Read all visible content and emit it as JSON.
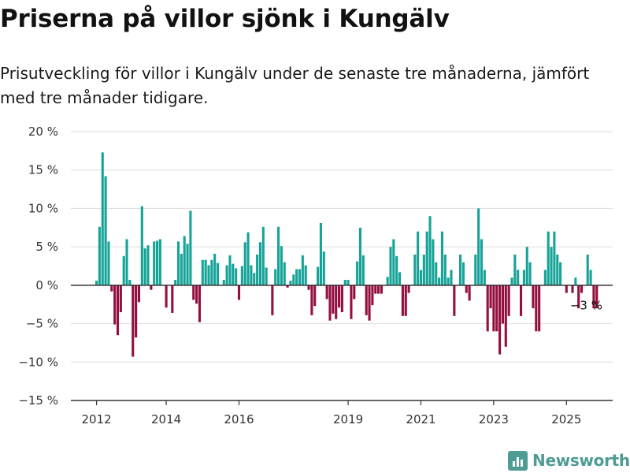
{
  "header": {
    "title": "Priserna på villor sjönk i Kungälv",
    "subtitle": "Prisutveckling för villor i Kungälv under de senaste tre månaderna, jämfört med tre månader tidigare."
  },
  "brand": {
    "name": "Newsworthy",
    "logo_icon": "bar-chart-icon"
  },
  "colors": {
    "positive": "#16a398",
    "negative": "#940f40",
    "grid": "#dddddd",
    "axis": "#333333"
  },
  "chart_data": {
    "type": "bar",
    "title": "Priserna på villor sjönk i Kungälv",
    "subtitle": "Prisutveckling för villor i Kungälv under de senaste tre månaderna, jämfört med tre månader tidigare.",
    "ylim": [
      -15,
      20
    ],
    "y_ticks": [
      20,
      15,
      10,
      5,
      0,
      -5,
      -10,
      -15
    ],
    "y_tick_labels": [
      "20 %",
      "15 %",
      "10 %",
      "5 %",
      "0 %",
      "−5 %",
      "−10 %",
      "−15 %"
    ],
    "x_ticks": [
      {
        "label": "2012",
        "index": 0
      },
      {
        "label": "2014",
        "index": 23
      },
      {
        "label": "2016",
        "index": 47
      },
      {
        "label": "2019",
        "index": 83
      },
      {
        "label": "2021",
        "index": 107
      },
      {
        "label": "2023",
        "index": 131
      },
      {
        "label": "2025",
        "index": 155
      }
    ],
    "grid": true,
    "annotation": {
      "text": "−3 %",
      "index": 160
    },
    "values": [
      0.6,
      7.6,
      17.3,
      14.2,
      5.7,
      -0.8,
      -5.1,
      -6.5,
      -3.5,
      3.8,
      6.0,
      0.7,
      -9.3,
      -6.8,
      -2.2,
      10.3,
      4.8,
      5.2,
      -0.6,
      5.7,
      5.8,
      6.0,
      0.0,
      -2.9,
      0.0,
      -3.6,
      0.7,
      5.7,
      4.1,
      6.4,
      5.4,
      9.7,
      -1.9,
      -2.4,
      -4.8,
      3.3,
      3.3,
      2.6,
      3.3,
      4.1,
      2.9,
      0.0,
      0.7,
      2.6,
      3.9,
      2.8,
      2.2,
      -1.9,
      2.5,
      5.6,
      6.9,
      2.6,
      1.6,
      4.0,
      5.6,
      7.6,
      2.3,
      0.0,
      -3.9,
      2.1,
      7.6,
      5.1,
      3.0,
      -0.3,
      0.6,
      1.4,
      2.1,
      2.1,
      3.9,
      2.6,
      -0.6,
      -3.9,
      -2.7,
      2.4,
      8.1,
      4.4,
      -1.8,
      -4.6,
      -3.7,
      -4.4,
      -2.9,
      -3.5,
      0.7,
      0.7,
      -4.4,
      -1.8,
      3.1,
      7.5,
      3.9,
      -3.9,
      -4.6,
      -2.6,
      -1.1,
      -1.1,
      -1.1,
      0.0,
      1.1,
      5.0,
      6.0,
      3.8,
      1.7,
      -4.0,
      -4.0,
      -1.0,
      0.0,
      4.0,
      7.0,
      2.0,
      4.0,
      7.0,
      9.0,
      6.0,
      3.0,
      1.0,
      7.0,
      4.0,
      1.0,
      2.0,
      -4.0,
      0.0,
      4.0,
      3.0,
      -1.0,
      -2.0,
      0.0,
      4.0,
      10.0,
      6.0,
      2.0,
      -6.0,
      -3.0,
      -6.0,
      -6.0,
      -9.0,
      -5.0,
      -8.0,
      -4.0,
      1.0,
      4.0,
      2.0,
      -4.0,
      2.0,
      5.0,
      3.0,
      -3.0,
      -6.0,
      -6.0,
      0.0,
      2.0,
      7.0,
      5.0,
      7.0,
      4.0,
      3.0,
      0.0,
      -1.0,
      0.0,
      -1.0,
      1.0,
      -3.0,
      -1.0,
      0.0,
      4.0,
      2.0,
      -3.0,
      -3.0
    ]
  }
}
